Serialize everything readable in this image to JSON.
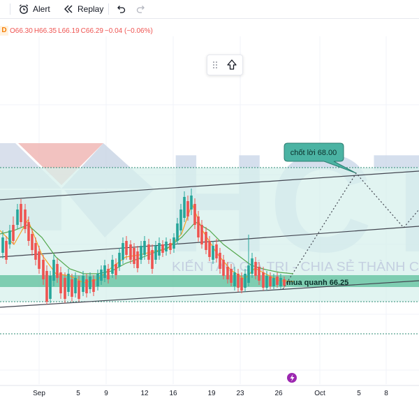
{
  "toolbar": {
    "alert_label": "Alert",
    "replay_label": "Replay"
  },
  "legend": {
    "interval": "D",
    "open": "O66.30",
    "high": "H66.35",
    "low": "L66.19",
    "close": "C66.29",
    "change": "−0.04 (−0.06%)"
  },
  "annotations": {
    "target": "chốt lời 68.00",
    "entry": "mua quanh 66.25"
  },
  "watermark": {
    "brand": "HCT",
    "slogan": "KIẾN TẠO GIÁ TRỊ - CHIA SẺ THÀNH C"
  },
  "time_axis": [
    "Sep",
    "5",
    "9",
    "12",
    "16",
    "19",
    "23",
    "26",
    "Oct",
    "5",
    "8"
  ],
  "colors": {
    "up": "#26a69a",
    "down": "#ef5350",
    "zone_fill": "#d7f0ec",
    "zone_border": "#2e8b74",
    "entry_band": "#6cc5a6",
    "callout_bg": "#4bb3a3",
    "ma_fast": "#f5a623",
    "ma_slow": "#55a84e",
    "lightning": "#9c27b0"
  },
  "chart_data": {
    "type": "candlestick",
    "symbol_interval": "D",
    "last": {
      "open": 66.3,
      "high": 66.35,
      "low": 66.19,
      "close": 66.29
    },
    "x_ticks": [
      "Sep",
      "5",
      "9",
      "12",
      "16",
      "19",
      "23",
      "26",
      "Oct",
      "5",
      "8"
    ],
    "price_levels": {
      "take_profit": 68.0,
      "entry": 66.25
    },
    "grid": true
  }
}
